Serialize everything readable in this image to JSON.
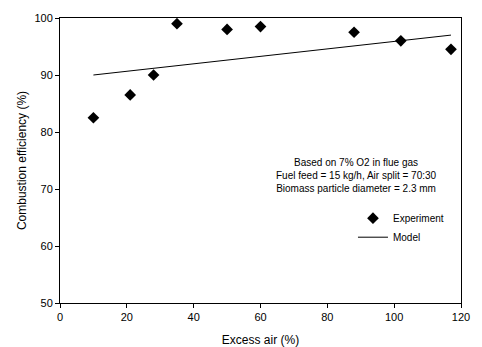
{
  "chart_data": {
    "type": "scatter",
    "x_label": "Excess air (%)",
    "y_label": "Combustion efficiency (%)",
    "annotations": [
      "Based on 7% O2 in flue gas",
      "Fuel feed = 15 kg/h, Air split = 70:30",
      "Biomass particle diameter = 2.3 mm"
    ],
    "series": [
      {
        "name": "Experiment",
        "type": "scatter",
        "marker": "diamond",
        "color": "#000000",
        "x": [
          10,
          21,
          28,
          35,
          50,
          60,
          88,
          102,
          117
        ],
        "values": [
          82.5,
          86.5,
          90,
          99,
          98,
          98.5,
          97.5,
          96,
          94.5
        ]
      },
      {
        "name": "Model",
        "type": "line",
        "line_style": "solid",
        "color": "#000000",
        "x": [
          10,
          117
        ],
        "values": [
          90,
          97
        ]
      }
    ],
    "xlim": [
      0,
      120
    ],
    "xticks": [
      0,
      20,
      40,
      60,
      80,
      100,
      120
    ],
    "ylim": [
      50,
      100
    ],
    "yticks": [
      50,
      60,
      70,
      80,
      90,
      100
    ],
    "grid": false,
    "legend": "lower right"
  }
}
